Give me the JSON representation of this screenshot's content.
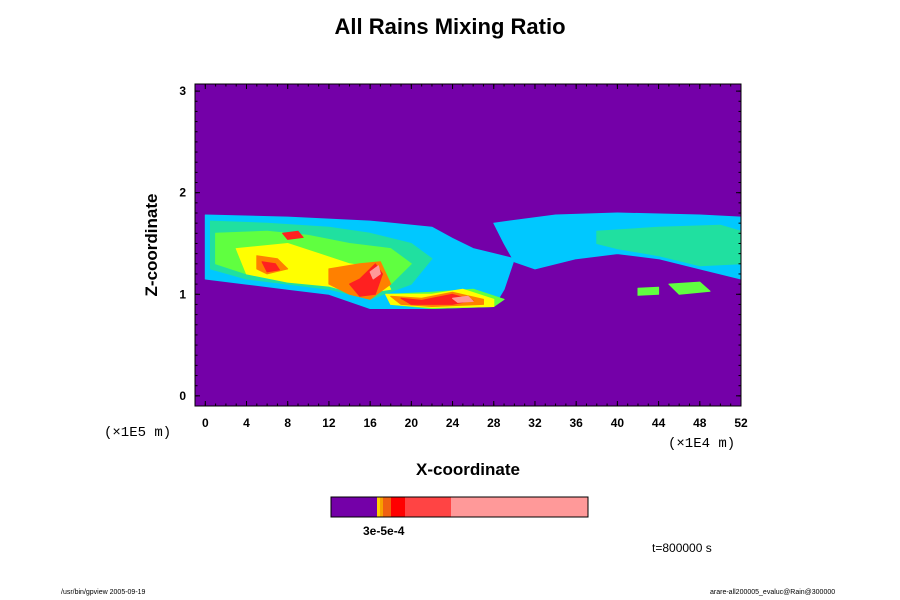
{
  "chart_data": {
    "type": "heatmap",
    "title": "All Rains Mixing Ratio",
    "xlabel": "X-coordinate",
    "ylabel": "Z-coordinate",
    "x_unit": "(×1E4 m)",
    "y_unit": "(×1E5 m)",
    "xlim": [
      -1,
      52
    ],
    "ylim": [
      -0.1,
      3.07
    ],
    "x_ticks": [
      0,
      4,
      8,
      12,
      16,
      20,
      24,
      28,
      32,
      36,
      40,
      44,
      48,
      52
    ],
    "y_ticks": [
      0,
      1,
      2,
      3
    ],
    "background_color": "#7400A8",
    "colorbar": {
      "colors": [
        "#7400A8",
        "#FFD000",
        "#F7A000",
        "#F06010",
        "#FF0000",
        "#FF4444",
        "#FF9999"
      ],
      "labels": "3e-5e-4"
    },
    "regions": [
      {
        "level": 1,
        "color": "#00C8FF",
        "points": [
          [
            0,
            1.78
          ],
          [
            8,
            1.76
          ],
          [
            16,
            1.72
          ],
          [
            22,
            1.66
          ],
          [
            24,
            1.55
          ],
          [
            26,
            1.45
          ],
          [
            28,
            1.4
          ],
          [
            30,
            1.35
          ],
          [
            29,
            1.05
          ],
          [
            28,
            0.88
          ],
          [
            22,
            0.86
          ],
          [
            16,
            0.86
          ],
          [
            12,
            1.0
          ],
          [
            8,
            1.05
          ],
          [
            4,
            1.1
          ],
          [
            0,
            1.15
          ]
        ]
      },
      {
        "level": 1,
        "color": "#00C8FF",
        "points": [
          [
            28,
            1.7
          ],
          [
            34,
            1.78
          ],
          [
            40,
            1.8
          ],
          [
            48,
            1.78
          ],
          [
            52,
            1.76
          ],
          [
            52,
            1.15
          ],
          [
            48,
            1.25
          ],
          [
            44,
            1.35
          ],
          [
            40,
            1.4
          ],
          [
            36,
            1.35
          ],
          [
            32,
            1.25
          ],
          [
            30,
            1.32
          ],
          [
            29,
            1.5
          ]
        ]
      },
      {
        "level": 2,
        "color": "#20E0A0",
        "points": [
          [
            0.5,
            1.72
          ],
          [
            6,
            1.7
          ],
          [
            12,
            1.66
          ],
          [
            16,
            1.6
          ],
          [
            20,
            1.5
          ],
          [
            22,
            1.35
          ],
          [
            20,
            1.1
          ],
          [
            16,
            0.95
          ],
          [
            12,
            1.05
          ],
          [
            8,
            1.1
          ],
          [
            4,
            1.15
          ],
          [
            0.5,
            1.25
          ]
        ]
      },
      {
        "level": 2,
        "color": "#20E0A0",
        "points": [
          [
            38,
            1.62
          ],
          [
            44,
            1.66
          ],
          [
            50,
            1.68
          ],
          [
            52,
            1.62
          ],
          [
            52,
            1.3
          ],
          [
            48,
            1.28
          ],
          [
            44,
            1.38
          ],
          [
            40,
            1.45
          ],
          [
            38,
            1.5
          ]
        ]
      },
      {
        "level": 3,
        "color": "#60FF40",
        "points": [
          [
            1,
            1.6
          ],
          [
            6,
            1.62
          ],
          [
            10,
            1.58
          ],
          [
            14,
            1.5
          ],
          [
            18,
            1.45
          ],
          [
            20,
            1.3
          ],
          [
            18,
            1.1
          ],
          [
            15,
            1.0
          ],
          [
            12,
            1.1
          ],
          [
            8,
            1.15
          ],
          [
            4,
            1.2
          ],
          [
            1,
            1.3
          ]
        ]
      },
      {
        "level": 3,
        "color": "#60FF40",
        "points": [
          [
            18,
            1.0
          ],
          [
            22,
            1.02
          ],
          [
            26,
            1.05
          ],
          [
            29,
            0.95
          ],
          [
            28,
            0.88
          ],
          [
            22,
            0.86
          ],
          [
            18,
            0.9
          ]
        ]
      },
      {
        "level": 4,
        "color": "#FFFF00",
        "points": [
          [
            3,
            1.45
          ],
          [
            8,
            1.5
          ],
          [
            11,
            1.4
          ],
          [
            14,
            1.3
          ],
          [
            17,
            1.25
          ],
          [
            18,
            1.05
          ],
          [
            15,
            1.0
          ],
          [
            12,
            1.08
          ],
          [
            8,
            1.12
          ],
          [
            4,
            1.2
          ]
        ]
      },
      {
        "level": 4,
        "color": "#FFFF00",
        "points": [
          [
            17.5,
            1.0
          ],
          [
            22,
            1.0
          ],
          [
            25,
            1.05
          ],
          [
            28,
            0.95
          ],
          [
            28,
            0.88
          ],
          [
            22,
            0.87
          ],
          [
            18,
            0.9
          ]
        ]
      },
      {
        "level": 5,
        "color": "#FF8000",
        "points": [
          [
            5,
            1.38
          ],
          [
            7,
            1.35
          ],
          [
            8,
            1.25
          ],
          [
            6,
            1.2
          ],
          [
            5,
            1.25
          ]
        ]
      },
      {
        "level": 5,
        "color": "#FF8000",
        "points": [
          [
            12,
            1.25
          ],
          [
            15,
            1.3
          ],
          [
            17,
            1.32
          ],
          [
            18,
            1.1
          ],
          [
            16,
            0.95
          ],
          [
            14,
            1.0
          ],
          [
            12,
            1.1
          ]
        ]
      },
      {
        "level": 5,
        "color": "#FF8000",
        "points": [
          [
            18,
            0.98
          ],
          [
            21,
            0.96
          ],
          [
            24,
            1.02
          ],
          [
            27,
            0.95
          ],
          [
            27,
            0.9
          ],
          [
            22,
            0.88
          ],
          [
            19,
            0.9
          ]
        ]
      },
      {
        "level": 6,
        "color": "#FF2020",
        "points": [
          [
            5.5,
            1.32
          ],
          [
            6.8,
            1.3
          ],
          [
            7.2,
            1.24
          ],
          [
            6,
            1.22
          ]
        ]
      },
      {
        "level": 6,
        "color": "#FF2020",
        "points": [
          [
            14,
            1.1
          ],
          [
            15,
            1.15
          ],
          [
            16.5,
            1.3
          ],
          [
            17.2,
            1.2
          ],
          [
            16.5,
            1.0
          ],
          [
            15,
            0.98
          ]
        ]
      },
      {
        "level": 6,
        "color": "#FF2020",
        "points": [
          [
            19,
            0.96
          ],
          [
            21,
            0.94
          ],
          [
            24,
            1.0
          ],
          [
            26,
            0.94
          ],
          [
            24,
            0.9
          ],
          [
            20,
            0.9
          ]
        ]
      },
      {
        "level": 6,
        "color": "#FF2020",
        "points": [
          [
            7.5,
            1.6
          ],
          [
            9,
            1.62
          ],
          [
            9.5,
            1.56
          ],
          [
            8,
            1.54
          ]
        ]
      },
      {
        "level": 6,
        "color": "#FF2020",
        "points": [
          [
            45.5,
            1.08
          ],
          [
            47,
            1.1
          ],
          [
            48,
            1.05
          ],
          [
            46.5,
            1.02
          ]
        ]
      },
      {
        "level": 7,
        "color": "#FF9999",
        "points": [
          [
            24,
            0.96
          ],
          [
            25.5,
            0.98
          ],
          [
            26,
            0.93
          ],
          [
            24.5,
            0.92
          ]
        ]
      },
      {
        "level": 7,
        "color": "#FF9999",
        "points": [
          [
            16,
            1.22
          ],
          [
            16.8,
            1.28
          ],
          [
            17,
            1.2
          ],
          [
            16.3,
            1.15
          ]
        ]
      },
      {
        "level": 3,
        "color": "#60FF40",
        "points": [
          [
            42,
            1.06
          ],
          [
            44,
            1.07
          ],
          [
            44,
            1.0
          ],
          [
            42,
            0.99
          ]
        ]
      },
      {
        "level": 3,
        "color": "#60FF40",
        "points": [
          [
            45,
            1.1
          ],
          [
            48,
            1.12
          ],
          [
            49,
            1.03
          ],
          [
            46,
            1.0
          ]
        ]
      }
    ]
  },
  "time_label": "t=800000 s",
  "footer_left": "/usr/bin/gpview 2005-09-19",
  "footer_right": "arare-all200005_evaluc@Rain@300000"
}
